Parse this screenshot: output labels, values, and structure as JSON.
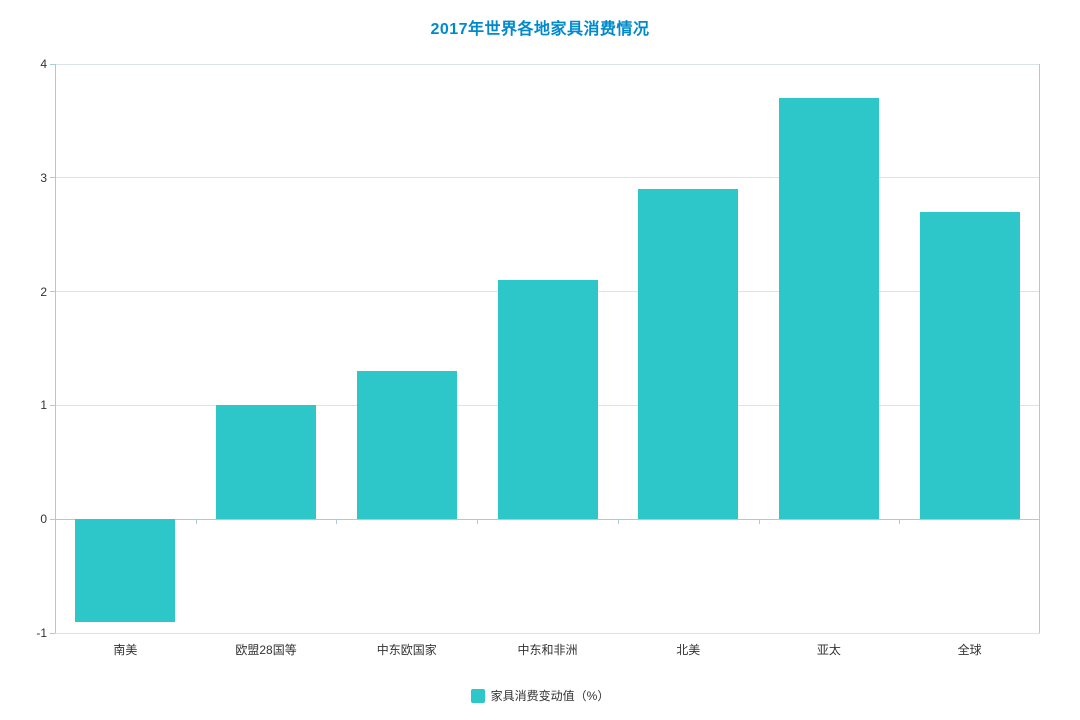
{
  "legend": {
    "label": "家具消费变动值（%）",
    "color": "#2ec7c9"
  },
  "chart_data": {
    "type": "bar",
    "title": "2017年世界各地家具消费情况",
    "categories": [
      "南美",
      "欧盟28国等",
      "中东欧国家",
      "中东和非洲",
      "北美",
      "亚太",
      "全球"
    ],
    "series": [
      {
        "name": "家具消费变动值（%）",
        "values": [
          -0.9,
          1,
          1.3,
          2.1,
          2.9,
          3.7,
          2.7
        ]
      }
    ],
    "xlabel": "",
    "ylabel": "",
    "ylim": [
      -1,
      4
    ],
    "yticks": [
      -1,
      0,
      1,
      2,
      3,
      4
    ],
    "grid": true,
    "legend_position": "bottom",
    "colors": {
      "bar": "#2ec7c9",
      "title": "#008acd",
      "grid": "#dbe3ea",
      "axis": "#a4cede",
      "text": "#333333"
    }
  }
}
